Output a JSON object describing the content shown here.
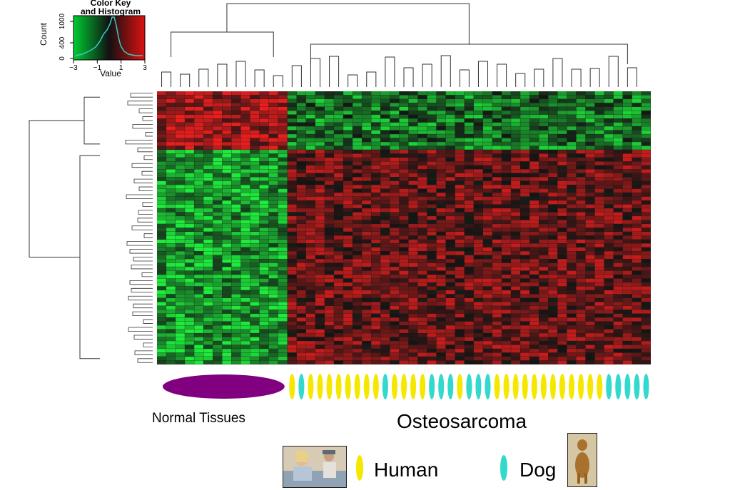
{
  "chart_data": {
    "type": "heatmap",
    "color_key": {
      "title_line1": "Color Key",
      "title_line2": "and Histogram",
      "ylabel": "Count",
      "xlabel": "Value",
      "xticks": [
        "−3",
        "−1",
        "1",
        "3"
      ],
      "yticks": [
        "0",
        "400",
        "1000"
      ],
      "scale": [
        "#00cc33",
        "#000000",
        "#dd1111"
      ]
    },
    "columns": {
      "groups": [
        "Normal Tissues",
        "Osteosarcoma"
      ],
      "normal_count": 14,
      "osteosarcoma_species": [
        "Human",
        "Dog",
        "Human",
        "Human",
        "Human",
        "Human",
        "Human",
        "Human",
        "Human",
        "Human",
        "Dog",
        "Human",
        "Human",
        "Human",
        "Human",
        "Dog",
        "Dog",
        "Dog",
        "Human",
        "Dog",
        "Dog",
        "Dog",
        "Human",
        "Human",
        "Human",
        "Human",
        "Human",
        "Human",
        "Human",
        "Human",
        "Human",
        "Human",
        "Human",
        "Human",
        "Dog",
        "Dog",
        "Dog",
        "Dog",
        "Dog"
      ]
    },
    "annotations": {
      "normal_label": "Normal Tissues",
      "osteosarcoma_label": "Osteosarcoma"
    },
    "legend": [
      {
        "name": "Human",
        "color": "#f5e800"
      },
      {
        "name": "Dog",
        "color": "#33d9cc"
      }
    ],
    "normal_marker_color": "#800080",
    "colors": {
      "high": "#e02020",
      "low": "#18d83a",
      "mid": "#000000"
    }
  }
}
